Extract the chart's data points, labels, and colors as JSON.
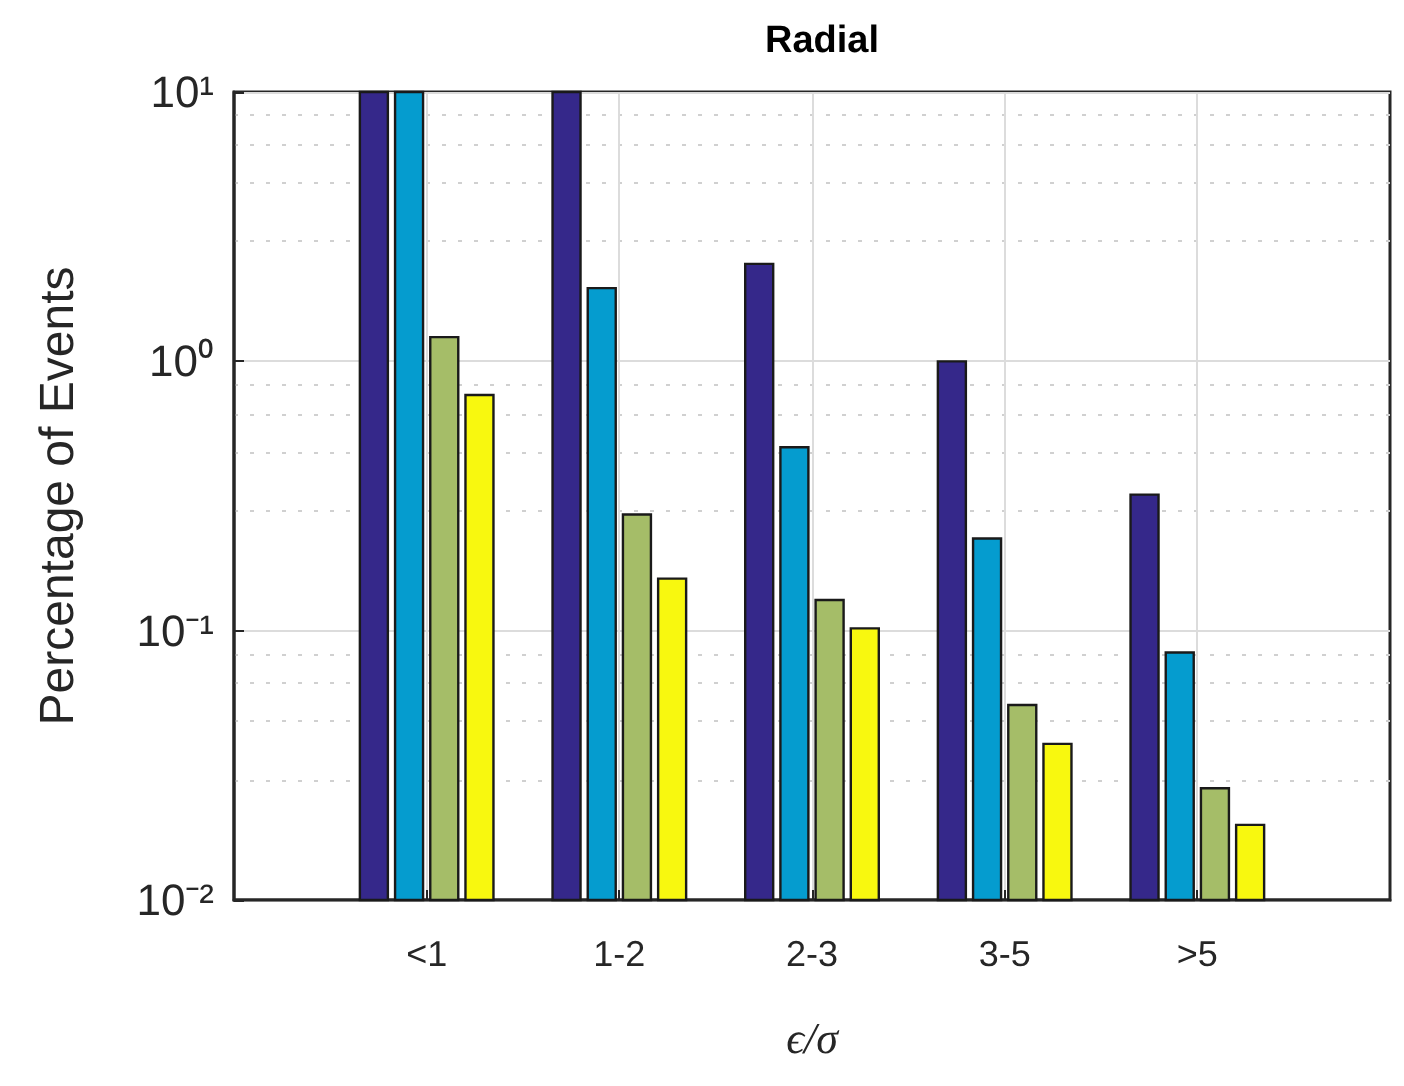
{
  "chart_data": {
    "type": "bar",
    "title": "Radial",
    "xlabel": "ϵ/σ",
    "ylabel": "Percentage of Events",
    "categories": [
      "<1",
      "1-2",
      "2-3",
      "3-5",
      ">5"
    ],
    "series": [
      {
        "color": "#35288a",
        "values": [
          10,
          10,
          2.3,
          1.0,
          0.32
        ]
      },
      {
        "color": "#059ccf",
        "values": [
          10,
          1.87,
          0.48,
          0.22,
          0.083
        ]
      },
      {
        "color": "#a5bd68",
        "values": [
          1.23,
          0.27,
          0.13,
          0.053,
          0.026
        ]
      },
      {
        "color": "#f8f80f",
        "values": [
          0.75,
          0.156,
          0.102,
          0.038,
          0.019
        ]
      }
    ],
    "log": "y",
    "ylim": [
      0.01,
      10
    ],
    "yticks": [
      {
        "value": 0.01,
        "label": "10⁻²"
      },
      {
        "value": 0.1,
        "label": "10⁻¹"
      },
      {
        "value": 1,
        "label": "10⁰"
      },
      {
        "value": 10,
        "label": "10¹"
      }
    ],
    "grid": true
  }
}
